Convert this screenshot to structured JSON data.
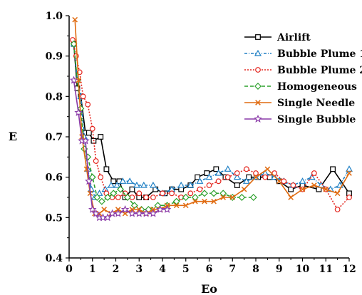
{
  "chart_data": {
    "type": "line",
    "xlabel": "Eo",
    "ylabel": "E",
    "xlim": [
      0,
      12
    ],
    "ylim": [
      0.4,
      1.0
    ],
    "x_ticks": [
      "0",
      "1",
      "2",
      "3",
      "4",
      "5",
      "6",
      "7",
      "8",
      "9",
      "10",
      "11",
      "12"
    ],
    "y_ticks": [
      "0.4",
      "0.5",
      "0.6",
      "0.7",
      "0.8",
      "0.9",
      "1.0"
    ],
    "legend_position": "top-right",
    "grid": false,
    "series": [
      {
        "name": "Airlift",
        "color": "#000000",
        "marker": "square",
        "dash": "",
        "x": [
          0.2,
          0.35,
          0.5,
          0.7,
          0.85,
          1.05,
          1.35,
          1.6,
          1.9,
          2.15,
          2.4,
          2.7,
          3.0,
          3.3,
          3.7,
          4.1,
          4.4,
          4.8,
          5.2,
          5.5,
          5.9,
          6.3,
          6.7,
          7.2,
          7.7,
          8.1,
          8.6,
          9.0,
          9.5,
          10.0,
          10.7,
          11.3,
          12.0
        ],
        "y": [
          0.93,
          0.82,
          0.8,
          0.71,
          0.71,
          0.69,
          0.7,
          0.62,
          0.59,
          0.59,
          0.55,
          0.57,
          0.55,
          0.55,
          0.57,
          0.56,
          0.57,
          0.57,
          0.58,
          0.6,
          0.61,
          0.62,
          0.6,
          0.58,
          0.6,
          0.6,
          0.6,
          0.59,
          0.57,
          0.58,
          0.57,
          0.62,
          0.56
        ]
      },
      {
        "name": "Bubble Plume 1",
        "color": "#1e7fc4",
        "marker": "triangle",
        "dash": "4,2,1,2",
        "x": [
          0.2,
          0.35,
          0.5,
          0.65,
          0.8,
          0.95,
          1.1,
          1.3,
          1.55,
          1.8,
          2.05,
          2.3,
          2.6,
          2.9,
          3.2,
          3.6,
          4.0,
          4.4,
          4.8,
          5.2,
          5.6,
          6.0,
          6.4,
          6.8,
          7.2,
          7.6,
          8.0,
          8.4,
          8.8,
          9.2,
          9.6,
          10.0,
          10.4,
          10.8,
          11.2,
          11.6,
          12.0
        ],
        "y": [
          0.93,
          0.84,
          0.8,
          0.7,
          0.62,
          0.57,
          0.55,
          0.56,
          0.57,
          0.58,
          0.58,
          0.59,
          0.59,
          0.58,
          0.58,
          0.58,
          0.56,
          0.57,
          0.58,
          0.58,
          0.59,
          0.6,
          0.61,
          0.62,
          0.6,
          0.59,
          0.6,
          0.61,
          0.6,
          0.59,
          0.58,
          0.59,
          0.6,
          0.58,
          0.57,
          0.58,
          0.62
        ]
      },
      {
        "name": "Bubble Plume 2",
        "color": "#e4261f",
        "marker": "circle",
        "dash": "2,2",
        "x": [
          0.15,
          0.3,
          0.45,
          0.6,
          0.8,
          1.0,
          1.15,
          1.35,
          1.6,
          1.85,
          2.1,
          2.4,
          2.7,
          3.0,
          3.3,
          3.6,
          4.0,
          4.4,
          4.8,
          5.2,
          5.6,
          6.0,
          6.4,
          6.8,
          7.2,
          7.6,
          8.0,
          8.4,
          8.8,
          9.2,
          9.6,
          10.0,
          10.5,
          11.0,
          11.5,
          12.0
        ],
        "y": [
          0.94,
          0.9,
          0.86,
          0.8,
          0.78,
          0.72,
          0.64,
          0.6,
          0.56,
          0.55,
          0.55,
          0.56,
          0.55,
          0.56,
          0.55,
          0.55,
          0.56,
          0.56,
          0.55,
          0.56,
          0.57,
          0.58,
          0.59,
          0.6,
          0.61,
          0.62,
          0.61,
          0.6,
          0.61,
          0.59,
          0.58,
          0.57,
          0.61,
          0.57,
          0.52,
          0.55
        ]
      },
      {
        "name": "Homogeneous",
        "color": "#2ca02c",
        "marker": "diamond",
        "dash": "5,3",
        "x": [
          0.2,
          0.35,
          0.5,
          0.65,
          0.8,
          1.0,
          1.2,
          1.4,
          1.65,
          1.9,
          2.2,
          2.5,
          2.8,
          3.1,
          3.4,
          3.8,
          4.2,
          4.6,
          5.0,
          5.4,
          5.8,
          6.2,
          6.6,
          7.0,
          7.4,
          7.9
        ],
        "y": [
          0.93,
          0.84,
          0.77,
          0.67,
          0.65,
          0.6,
          0.55,
          0.54,
          0.55,
          0.56,
          0.57,
          0.55,
          0.53,
          0.52,
          0.52,
          0.53,
          0.53,
          0.54,
          0.55,
          0.55,
          0.56,
          0.56,
          0.56,
          0.55,
          0.55,
          0.55
        ]
      },
      {
        "name": "Single Needle",
        "color": "#e06b10",
        "marker": "x",
        "dash": "",
        "x": [
          0.25,
          0.4,
          0.55,
          0.75,
          0.9,
          1.1,
          1.3,
          1.5,
          1.8,
          2.1,
          2.4,
          2.7,
          3.0,
          3.3,
          3.6,
          3.9,
          4.2,
          4.6,
          5.0,
          5.4,
          5.8,
          6.2,
          6.6,
          7.0,
          7.5,
          8.0,
          8.5,
          9.0,
          9.5,
          10.0,
          10.5,
          11.0,
          11.5,
          12.0
        ],
        "y": [
          0.99,
          0.84,
          0.7,
          0.62,
          0.56,
          0.51,
          0.51,
          0.52,
          0.51,
          0.52,
          0.51,
          0.52,
          0.52,
          0.51,
          0.52,
          0.52,
          0.53,
          0.53,
          0.53,
          0.54,
          0.54,
          0.54,
          0.55,
          0.55,
          0.57,
          0.6,
          0.62,
          0.59,
          0.55,
          0.57,
          0.58,
          0.57,
          0.56,
          0.61
        ]
      },
      {
        "name": "Single Bubble",
        "color": "#8a3aa8",
        "marker": "star",
        "dash": "",
        "x": [
          0.2,
          0.4,
          0.55,
          0.7,
          0.85,
          1.0,
          1.15,
          1.3,
          1.45,
          1.65,
          1.85,
          2.1,
          2.4,
          2.7,
          3.0,
          3.3,
          3.6,
          3.9,
          4.2
        ],
        "y": [
          0.84,
          0.76,
          0.69,
          0.69,
          0.59,
          0.52,
          0.51,
          0.5,
          0.5,
          0.5,
          0.51,
          0.51,
          0.52,
          0.51,
          0.51,
          0.51,
          0.51,
          0.52,
          0.52
        ]
      }
    ]
  }
}
